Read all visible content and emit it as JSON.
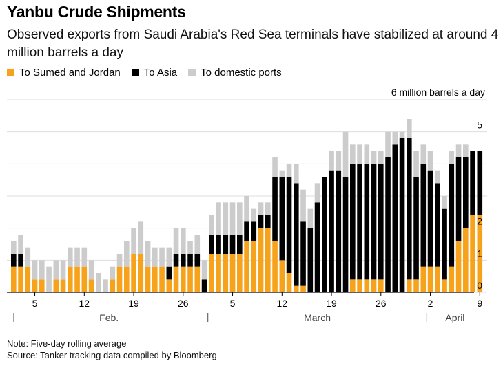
{
  "title": "Yanbu Crude Shipments",
  "subtitle": "Observed exports from Saudi Arabia's Red Sea terminals have stabilized at around 4 million barrels a day",
  "unit_label": "6 million barrels a day",
  "footnote": "Note: Five-day rolling average",
  "source": "Source: Tanker tracking data compiled by Bloomberg",
  "colors": {
    "sumed_jordan": "#f7a21b",
    "asia": "#000000",
    "domestic": "#cccccc",
    "grid": "#dddddd"
  },
  "chart_data": {
    "type": "bar",
    "stacked": true,
    "ylim": [
      0,
      6
    ],
    "yticks": [
      0,
      1,
      2,
      3,
      4,
      5
    ],
    "grid": true,
    "legend_position": "top-left",
    "x_tick_labels": [
      {
        "label": "5",
        "index": 3
      },
      {
        "label": "12",
        "index": 10
      },
      {
        "label": "19",
        "index": 17
      },
      {
        "label": "26",
        "index": 24
      },
      {
        "label": "5",
        "index": 31
      },
      {
        "label": "12",
        "index": 38
      },
      {
        "label": "19",
        "index": 45
      },
      {
        "label": "26",
        "index": 52
      },
      {
        "label": "2",
        "index": 59
      },
      {
        "label": "9",
        "index": 66
      }
    ],
    "month_labels": [
      {
        "label": "Feb.",
        "start": 0,
        "end": 27
      },
      {
        "label": "March",
        "start": 28,
        "end": 58
      },
      {
        "label": "April",
        "start": 59,
        "end": 66
      }
    ],
    "series": [
      {
        "name": "To Sumed and Jordan",
        "values": [
          0.8,
          0.8,
          0.8,
          0.4,
          0.4,
          0,
          0.4,
          0.4,
          0.8,
          0.8,
          0.8,
          0.4,
          0,
          0,
          0.4,
          0.8,
          0.8,
          1.2,
          1.2,
          0.8,
          0.8,
          0.8,
          0.4,
          0.8,
          0.8,
          0.8,
          0.8,
          0,
          1.2,
          1.2,
          1.2,
          1.2,
          1.2,
          1.6,
          1.6,
          2.0,
          2.0,
          1.6,
          1.0,
          0.6,
          0.2,
          0.2,
          0,
          0,
          0,
          0,
          0,
          0,
          0.4,
          0.4,
          0.4,
          0.4,
          0.4,
          0,
          0,
          0,
          0.4,
          0.4,
          0.8,
          0.8,
          0.8,
          0.4,
          0.8,
          1.6,
          2.0,
          2.4,
          2.4
        ]
      },
      {
        "name": "To Asia",
        "values": [
          0.4,
          0.4,
          0,
          0,
          0,
          0,
          0,
          0,
          0,
          0,
          0,
          0,
          0,
          0,
          0,
          0,
          0,
          0,
          0,
          0,
          0,
          0,
          0.4,
          0.4,
          0.4,
          0.4,
          0.4,
          0.4,
          0.6,
          0.6,
          0.6,
          0.6,
          0.6,
          0.6,
          0.6,
          0.4,
          0.4,
          2.0,
          2.6,
          3.0,
          3.2,
          2.0,
          2.0,
          2.8,
          3.6,
          3.8,
          3.8,
          3.6,
          3.6,
          3.6,
          3.6,
          3.6,
          3.6,
          4.2,
          4.6,
          4.8,
          4.4,
          3.2,
          3.2,
          3.0,
          2.6,
          2.2,
          3.2,
          2.6,
          2.2,
          2.0,
          2.0
        ]
      },
      {
        "name": "To domestic ports",
        "values": [
          0.4,
          0.6,
          0.6,
          0.6,
          0.6,
          0.8,
          0.6,
          0.6,
          0.6,
          0.6,
          0.6,
          0.6,
          0.6,
          0.4,
          0.4,
          0.4,
          0.8,
          0.8,
          1.0,
          0.8,
          0.6,
          0.6,
          0.6,
          0.8,
          0.8,
          0.4,
          0.6,
          0.6,
          0.6,
          1.0,
          1.0,
          1.0,
          1.0,
          0.8,
          0.4,
          0.4,
          0.4,
          0.6,
          0.2,
          0.4,
          0.6,
          1.0,
          0.6,
          0.6,
          0,
          0.6,
          0.6,
          1.4,
          0.6,
          0.6,
          0.6,
          0.4,
          0.4,
          0.8,
          0.4,
          0.2,
          0.6,
          0.8,
          0.6,
          0.6,
          0.4,
          0.4,
          0.4,
          0.4,
          0.4,
          0,
          0
        ]
      }
    ]
  }
}
